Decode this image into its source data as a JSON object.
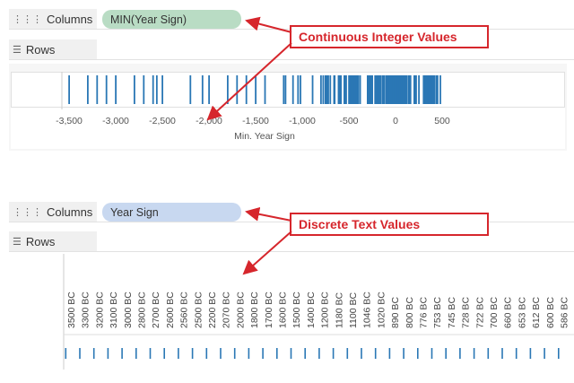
{
  "top": {
    "columns_label": "Columns",
    "rows_label": "Rows",
    "pill": "MIN(Year Sign)",
    "pill_color": "#b9dcc4",
    "callout": "Continuous Integer Values",
    "chart_data": {
      "type": "strip",
      "xlabel": "Min. Year Sign",
      "xlim": [
        -3700,
        600
      ],
      "ticks": [
        -3500,
        -3000,
        -2500,
        -2000,
        -1500,
        -1000,
        -500,
        0,
        500
      ],
      "tick_labels": [
        "-3,500",
        "-3,000",
        "-2,500",
        "-2,000",
        "-1,500",
        "-1,000",
        "-500",
        "0",
        "500"
      ],
      "color": "#2a77b5",
      "values": [
        -3500,
        -3300,
        -3200,
        -3100,
        -3000,
        -2800,
        -2700,
        -2600,
        -2560,
        -2500,
        -2200,
        -2070,
        -2000,
        -1800,
        -1700,
        -1600,
        -1500,
        -1400,
        -1200,
        -1180,
        -1100,
        -1046,
        -1020,
        -890,
        -800,
        -776,
        -753,
        -745,
        -728,
        -722,
        -700,
        -660,
        -653,
        -612,
        -600,
        -586,
        -550,
        -540,
        -530,
        -500,
        -490,
        -480,
        -470,
        -460,
        -450,
        -440,
        -430,
        -420,
        -410,
        -400,
        -380,
        -300,
        -290,
        -280,
        -270,
        -260,
        -250,
        -220,
        -210,
        -200,
        -190,
        -180,
        -170,
        -160,
        -140,
        -130,
        -120,
        -100,
        -90,
        -80,
        -70,
        -60,
        -50,
        -40,
        -30,
        -20,
        -10,
        0,
        10,
        20,
        30,
        40,
        50,
        60,
        70,
        80,
        90,
        100,
        110,
        120,
        140,
        150,
        160,
        200,
        210,
        220,
        250,
        300,
        310,
        320,
        330,
        340,
        350,
        360,
        370,
        380,
        390,
        400,
        410,
        420,
        440,
        450,
        480
      ]
    }
  },
  "bottom": {
    "columns_label": "Columns",
    "rows_label": "Rows",
    "pill": "Year Sign",
    "pill_color": "#c8d8f0",
    "callout": "Discrete Text Values",
    "chart_data": {
      "type": "strip",
      "color": "#2a77b5",
      "categories": [
        "3500 BC",
        "3300 BC",
        "3200 BC",
        "3100 BC",
        "3000 BC",
        "2800 BC",
        "2700 BC",
        "2600 BC",
        "2560 BC",
        "2500 BC",
        "2200 BC",
        "2070 BC",
        "2000 BC",
        "1800 BC",
        "1700 BC",
        "1600 BC",
        "1500 BC",
        "1400 BC",
        "1200 BC",
        "1180 BC",
        "1100 BC",
        "1046 BC",
        "1020 BC",
        "890 BC",
        "800 BC",
        "776 BC",
        "753 BC",
        "745 BC",
        "728 BC",
        "722 BC",
        "700 BC",
        "660 BC",
        "653 BC",
        "612 BC",
        "600 BC",
        "586 BC"
      ]
    }
  },
  "annotation_color": "#d6262c"
}
